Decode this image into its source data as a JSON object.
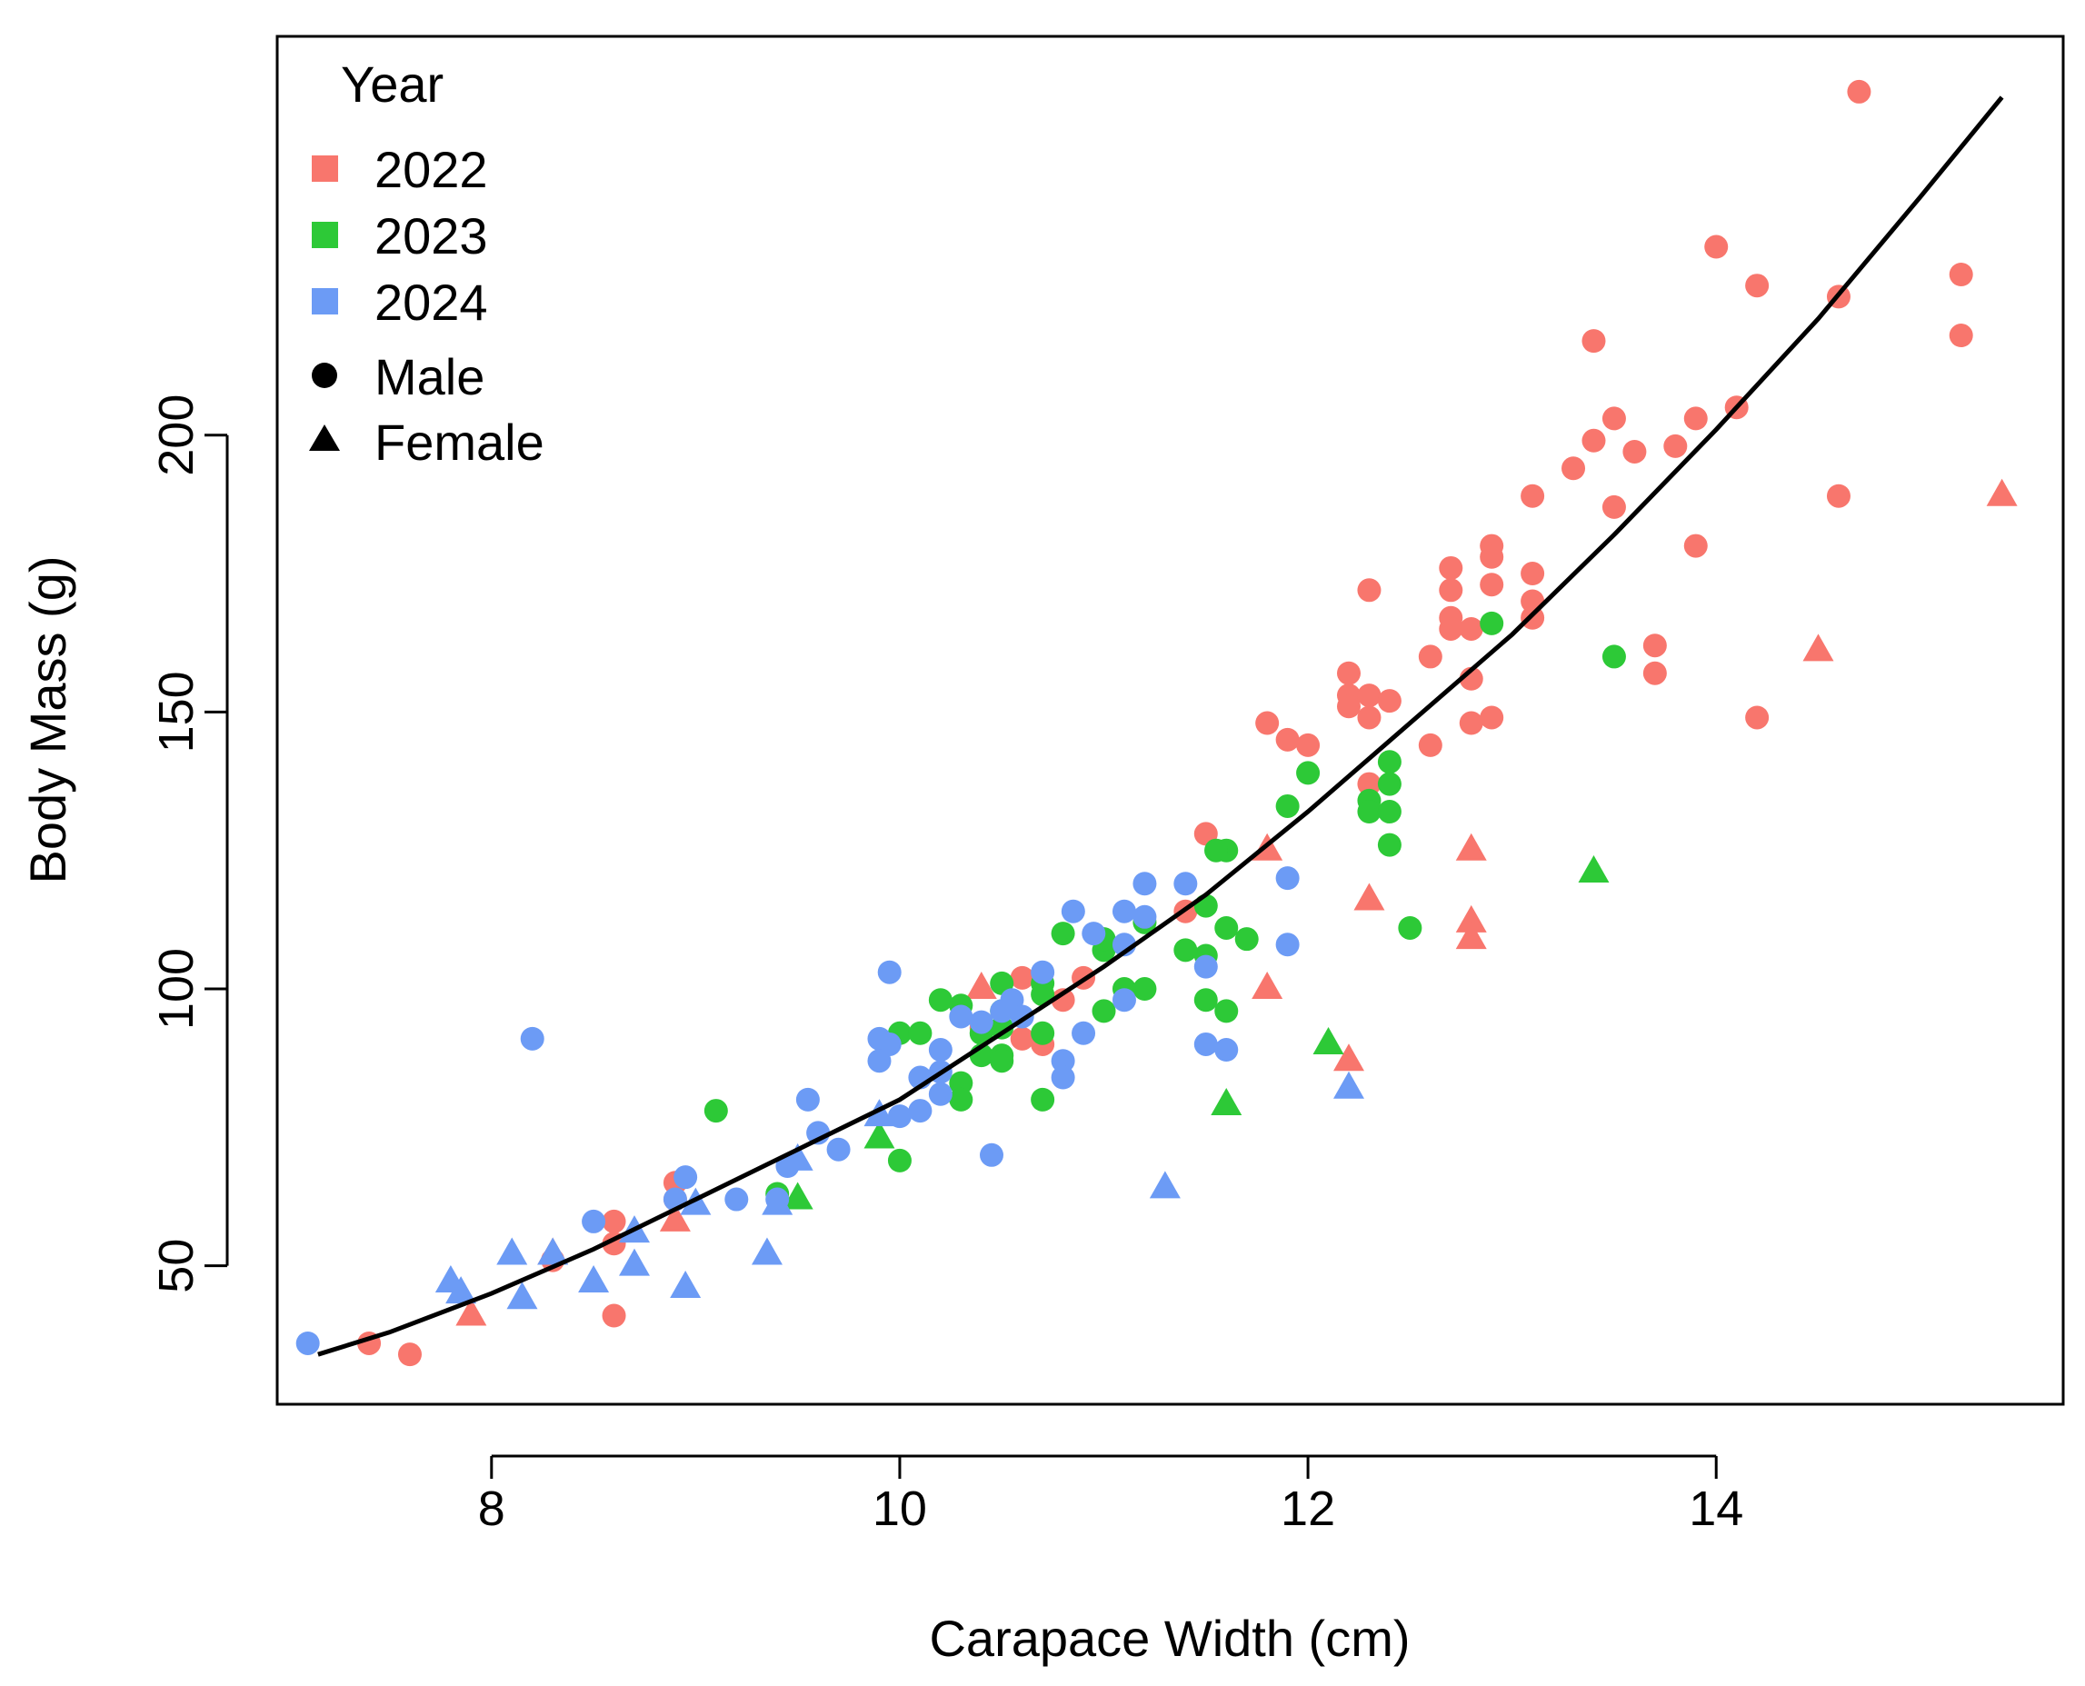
{
  "chart_data": {
    "type": "scatter",
    "title": "",
    "xlabel": "Carapace Width (cm)",
    "ylabel": "Body Mass (g)",
    "xlim": [
      6.95,
      15.7
    ],
    "ylim": [
      25,
      272
    ],
    "xticks": [
      8,
      10,
      12,
      14
    ],
    "yticks": [
      50,
      100,
      150,
      200
    ],
    "grid": false,
    "legend": {
      "position": "top-left",
      "title": "Year",
      "color_entries": [
        {
          "label": "2022",
          "color": "#F8766D"
        },
        {
          "label": "2023",
          "color": "#2DC937"
        },
        {
          "label": "2024",
          "color": "#6C9BF5"
        }
      ],
      "shape_entries": [
        {
          "label": "Male",
          "shape": "circle"
        },
        {
          "label": "Female",
          "shape": "triangle"
        }
      ]
    },
    "colors": {
      "2022": "#F8766D",
      "2023": "#2DC937",
      "2024": "#6C9BF5",
      "fit": "#000000"
    },
    "fit_curve": {
      "x": [
        7.15,
        7.5,
        8.0,
        8.5,
        9.0,
        9.5,
        10.0,
        10.5,
        11.0,
        11.5,
        12.0,
        12.5,
        13.0,
        13.5,
        14.0,
        14.5,
        15.0,
        15.4
      ],
      "y": [
        34,
        38,
        45,
        53,
        62,
        71,
        80,
        92,
        104,
        117,
        132,
        148,
        164,
        182,
        201,
        221,
        243,
        261
      ]
    },
    "series": [
      {
        "name": "2022",
        "color": "#F8766D",
        "male": [
          [
            14.7,
            262
          ],
          [
            14.0,
            234
          ],
          [
            14.2,
            227
          ],
          [
            14.6,
            225
          ],
          [
            15.2,
            229
          ],
          [
            15.2,
            218
          ],
          [
            13.4,
            217
          ],
          [
            13.5,
            203
          ],
          [
            13.4,
            199
          ],
          [
            13.6,
            197
          ],
          [
            13.8,
            198
          ],
          [
            13.9,
            203
          ],
          [
            14.1,
            205
          ],
          [
            13.3,
            194
          ],
          [
            13.1,
            189
          ],
          [
            13.5,
            187
          ],
          [
            14.6,
            189
          ],
          [
            12.9,
            180
          ],
          [
            12.9,
            178
          ],
          [
            13.1,
            175
          ],
          [
            12.7,
            176
          ],
          [
            12.9,
            173
          ],
          [
            12.7,
            172
          ],
          [
            12.3,
            172
          ],
          [
            13.1,
            170
          ],
          [
            13.1,
            167
          ],
          [
            12.7,
            167
          ],
          [
            12.7,
            165
          ],
          [
            12.8,
            165
          ],
          [
            13.9,
            180
          ],
          [
            13.7,
            162
          ],
          [
            13.7,
            157
          ],
          [
            12.6,
            160
          ],
          [
            12.2,
            157
          ],
          [
            12.2,
            153
          ],
          [
            12.3,
            153
          ],
          [
            12.4,
            152
          ],
          [
            12.2,
            151
          ],
          [
            12.3,
            149
          ],
          [
            12.8,
            156
          ],
          [
            12.9,
            149
          ],
          [
            12.8,
            148
          ],
          [
            14.2,
            149
          ],
          [
            11.8,
            148
          ],
          [
            11.9,
            145
          ],
          [
            12.0,
            144
          ],
          [
            12.6,
            144
          ],
          [
            12.3,
            137
          ],
          [
            11.5,
            128
          ],
          [
            11.4,
            114
          ],
          [
            10.6,
            102
          ],
          [
            10.9,
            102
          ],
          [
            10.8,
            98
          ],
          [
            10.4,
            93
          ],
          [
            10.6,
            91
          ],
          [
            10.7,
            90
          ],
          [
            8.9,
            65
          ],
          [
            8.9,
            62
          ],
          [
            8.6,
            58
          ],
          [
            8.6,
            54
          ],
          [
            8.3,
            51
          ],
          [
            8.6,
            41
          ],
          [
            7.4,
            36
          ],
          [
            7.6,
            34
          ]
        ]
      },
      {
        "name": "2022-female",
        "color": "#F8766D",
        "female": [
          [
            15.4,
            189
          ],
          [
            14.5,
            161
          ],
          [
            12.8,
            125
          ],
          [
            11.8,
            125
          ],
          [
            12.3,
            116
          ],
          [
            12.8,
            112
          ],
          [
            12.8,
            109
          ],
          [
            11.8,
            100
          ],
          [
            12.2,
            87
          ],
          [
            10.4,
            100
          ],
          [
            8.9,
            58
          ],
          [
            8.3,
            52
          ],
          [
            7.9,
            41
          ]
        ]
      },
      {
        "name": "2023",
        "color": "#2DC937",
        "male": [
          [
            12.9,
            166
          ],
          [
            13.5,
            160
          ],
          [
            12.4,
            141
          ],
          [
            12.4,
            137
          ],
          [
            12.3,
            134
          ],
          [
            12.0,
            139
          ],
          [
            11.9,
            133
          ],
          [
            12.3,
            132
          ],
          [
            12.4,
            132
          ],
          [
            12.4,
            126
          ],
          [
            11.6,
            125
          ],
          [
            11.55,
            125
          ],
          [
            11.5,
            115
          ],
          [
            11.6,
            111
          ],
          [
            11.7,
            109
          ],
          [
            12.5,
            111
          ],
          [
            11.5,
            106
          ],
          [
            11.4,
            107
          ],
          [
            11.2,
            112
          ],
          [
            11.2,
            100
          ],
          [
            11.1,
            100
          ],
          [
            11.0,
            107
          ],
          [
            11.0,
            96
          ],
          [
            11.0,
            109
          ],
          [
            10.8,
            110
          ],
          [
            10.7,
            101
          ],
          [
            10.7,
            99
          ],
          [
            10.5,
            101
          ],
          [
            10.3,
            97
          ],
          [
            10.2,
            98
          ],
          [
            10.5,
            96
          ],
          [
            10.5,
            93
          ],
          [
            10.7,
            92
          ],
          [
            10.4,
            92
          ],
          [
            10.5,
            88
          ],
          [
            10.4,
            88
          ],
          [
            10.5,
            87
          ],
          [
            10.3,
            83
          ],
          [
            10.3,
            80
          ],
          [
            10.7,
            80
          ],
          [
            10.0,
            92
          ],
          [
            10.1,
            92
          ],
          [
            9.1,
            78
          ],
          [
            10.0,
            69
          ],
          [
            9.4,
            63
          ],
          [
            11.5,
            98
          ],
          [
            11.6,
            96
          ]
        ]
      },
      {
        "name": "2023-female",
        "color": "#2DC937",
        "female": [
          [
            13.4,
            121
          ],
          [
            12.1,
            90
          ],
          [
            11.6,
            79
          ],
          [
            9.9,
            73
          ],
          [
            9.5,
            62
          ]
        ]
      },
      {
        "name": "2024",
        "color": "#6C9BF5",
        "male": [
          [
            11.9,
            120
          ],
          [
            11.2,
            119
          ],
          [
            11.4,
            119
          ],
          [
            11.1,
            114
          ],
          [
            11.2,
            113
          ],
          [
            10.85,
            114
          ],
          [
            10.95,
            110
          ],
          [
            11.1,
            108
          ],
          [
            11.9,
            108
          ],
          [
            11.5,
            104
          ],
          [
            11.5,
            90
          ],
          [
            11.6,
            89
          ],
          [
            11.1,
            98
          ],
          [
            10.9,
            92
          ],
          [
            10.8,
            87
          ],
          [
            10.8,
            84
          ],
          [
            10.7,
            103
          ],
          [
            10.55,
            98
          ],
          [
            10.5,
            96
          ],
          [
            10.6,
            95
          ],
          [
            10.3,
            95
          ],
          [
            10.4,
            94
          ],
          [
            10.2,
            89
          ],
          [
            10.2,
            85
          ],
          [
            10.1,
            84
          ],
          [
            10.2,
            81
          ],
          [
            10.1,
            78
          ],
          [
            10.0,
            77
          ],
          [
            9.9,
            91
          ],
          [
            9.95,
            90
          ],
          [
            9.9,
            87
          ],
          [
            9.95,
            103
          ],
          [
            9.55,
            80
          ],
          [
            9.6,
            74
          ],
          [
            9.7,
            71
          ],
          [
            9.45,
            68
          ],
          [
            10.45,
            70
          ],
          [
            8.2,
            91
          ],
          [
            8.95,
            66
          ],
          [
            8.9,
            62
          ],
          [
            9.2,
            62
          ],
          [
            9.4,
            62
          ],
          [
            8.5,
            58
          ],
          [
            7.1,
            36
          ]
        ]
      },
      {
        "name": "2024-female",
        "color": "#6C9BF5",
        "female": [
          [
            12.2,
            82
          ],
          [
            11.3,
            64
          ],
          [
            9.9,
            77
          ],
          [
            9.5,
            69
          ],
          [
            9.4,
            61
          ],
          [
            9.35,
            52
          ],
          [
            9.0,
            61
          ],
          [
            8.95,
            46
          ],
          [
            8.7,
            56
          ],
          [
            8.7,
            50
          ],
          [
            8.5,
            47
          ],
          [
            8.3,
            52
          ],
          [
            8.1,
            52
          ],
          [
            8.15,
            44
          ],
          [
            7.8,
            47
          ],
          [
            7.85,
            45
          ]
        ]
      }
    ]
  }
}
